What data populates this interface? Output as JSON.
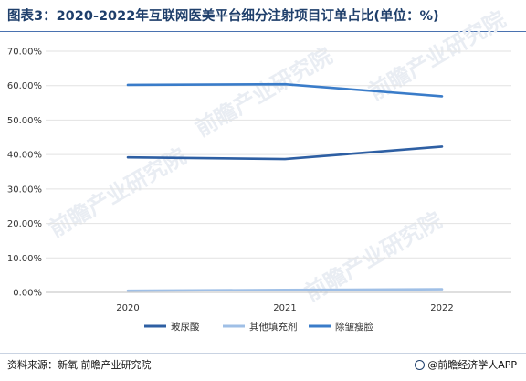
{
  "header": {
    "title": "图表3：2020-2022年互联网医美平台细分注射项目订单占比(单位：%)"
  },
  "footer": {
    "source": "资料来源：新氧 前瞻产业研究院",
    "brand": "@前瞻经济学人APP"
  },
  "watermark": "前瞻产业研究院",
  "chart_data": {
    "type": "line",
    "title": "图表3：2020-2022年互联网医美平台细分注射项目订单占比(单位：%)",
    "xlabel": "",
    "ylabel": "",
    "categories": [
      "2020",
      "2021",
      "2022"
    ],
    "y_ticks": [
      "0.00%",
      "10.00%",
      "20.00%",
      "30.00%",
      "40.00%",
      "50.00%",
      "60.00%",
      "70.00%"
    ],
    "ylim": [
      0,
      70
    ],
    "grid": true,
    "legend_position": "bottom",
    "series": [
      {
        "name": "玻尿酸",
        "values": [
          39.2,
          38.7,
          42.3
        ],
        "color": "#2e5fa3"
      },
      {
        "name": "其他填充剂",
        "values": [
          0.5,
          0.7,
          0.9
        ],
        "color": "#9fbfe6"
      },
      {
        "name": "除皱瘦脸",
        "values": [
          60.2,
          60.4,
          56.9
        ],
        "color": "#3a7cc9"
      }
    ]
  }
}
